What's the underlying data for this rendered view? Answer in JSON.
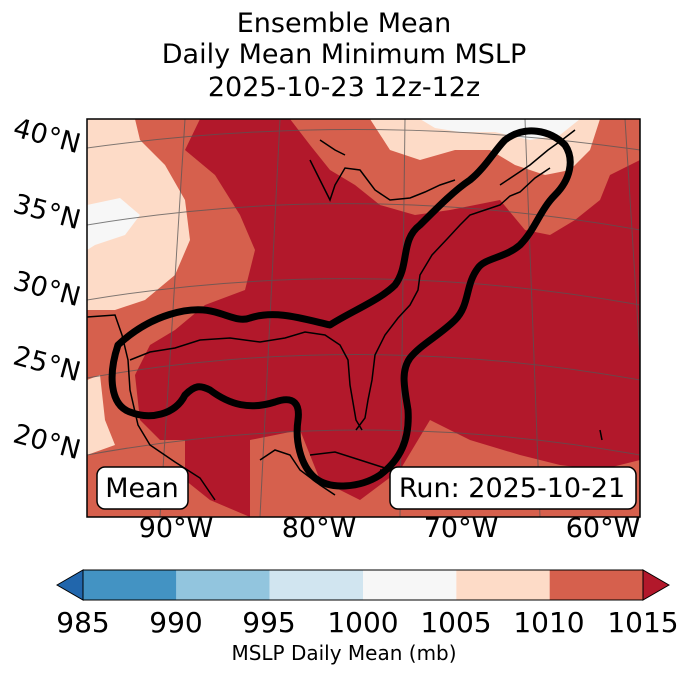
{
  "title": {
    "line1": "Ensemble Mean",
    "line2": "Daily Mean Minimum MSLP",
    "line3": "2025-10-23 12z-12z"
  },
  "map": {
    "lat_labels": [
      "40°N",
      "35°N",
      "30°N",
      "25°N",
      "20°N"
    ],
    "lon_labels": [
      "90°W",
      "80°W",
      "70°W",
      "60°W"
    ],
    "mean_label": "Mean",
    "run_label": "Run: 2025-10-21",
    "feature": "black contour outlining low pressure trough along the US East Coast and Gulf of Mexico"
  },
  "colorbar": {
    "label": "MSLP Daily Mean (mb)",
    "ticks": [
      "985",
      "990",
      "995",
      "1000",
      "1005",
      "1010",
      "1015"
    ],
    "colors": [
      "#2166ac",
      "#4393c3",
      "#92c5de",
      "#d1e5f0",
      "#f7f7f7",
      "#fddbc7",
      "#d6604d",
      "#b2182b"
    ]
  }
}
